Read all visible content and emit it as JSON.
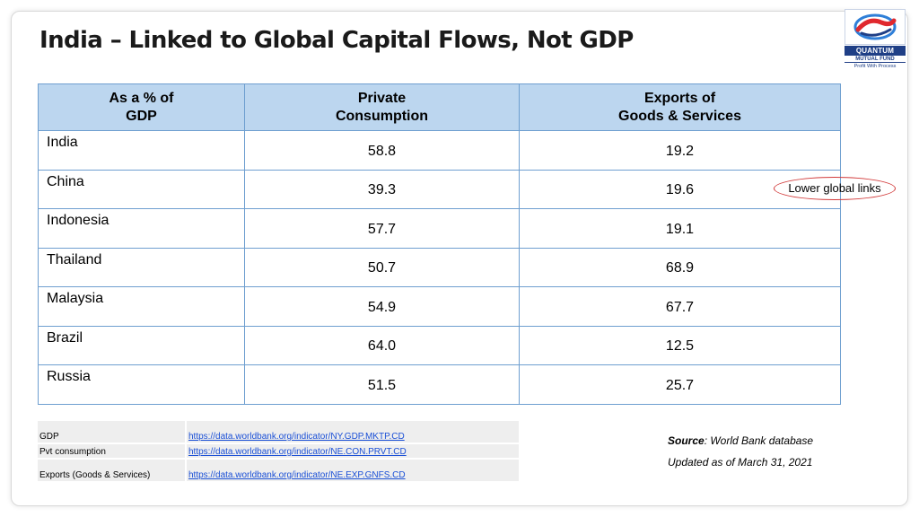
{
  "slide": {
    "title": "India – Linked to Global Capital Flows, Not GDP"
  },
  "logo": {
    "name": "QUANTUM",
    "sub": "MUTUAL FUND",
    "tagline": "Profit With Process",
    "colors": {
      "navy": "#1f3f86",
      "red": "#e0282e",
      "blue": "#2f7fd8"
    }
  },
  "table": {
    "headers": {
      "col1_line1": "As a % of",
      "col1_line2": "GDP",
      "col2_line1": "Private",
      "col2_line2": "Consumption",
      "col3_line1": "Exports of",
      "col3_line2": "Goods & Services"
    },
    "rows": [
      {
        "country": "India",
        "consumption": "58.8",
        "exports": "19.2"
      },
      {
        "country": "China",
        "consumption": "39.3",
        "exports": "19.6"
      },
      {
        "country": "Indonesia",
        "consumption": "57.7",
        "exports": "19.1"
      },
      {
        "country": "Thailand",
        "consumption": "50.7",
        "exports": "68.9"
      },
      {
        "country": "Malaysia",
        "consumption": "54.9",
        "exports": "67.7"
      },
      {
        "country": "Brazil",
        "consumption": "64.0",
        "exports": "12.5"
      },
      {
        "country": "Russia",
        "consumption": "51.5",
        "exports": "25.7"
      }
    ],
    "header_bg": "#bcd6ef",
    "border_color": "#6f9fd0"
  },
  "annotation": {
    "text": "Lower global links",
    "color": "#d23a3a"
  },
  "sources": {
    "rows": [
      {
        "label": "GDP",
        "url": "https://data.worldbank.org/indicator/NY.GDP.MKTP.CD"
      },
      {
        "label": "Pvt consumption",
        "url": "https://data.worldbank.org/indicator/NE.CON.PRVT.CD"
      },
      {
        "label": "Exports (Goods & Services)",
        "url": "https://data.worldbank.org/indicator/NE.EXP.GNFS.CD"
      }
    ]
  },
  "notes": {
    "source_label": "Source",
    "source_text": ": World Bank database",
    "updated": "Updated as of March 31, 2021"
  }
}
